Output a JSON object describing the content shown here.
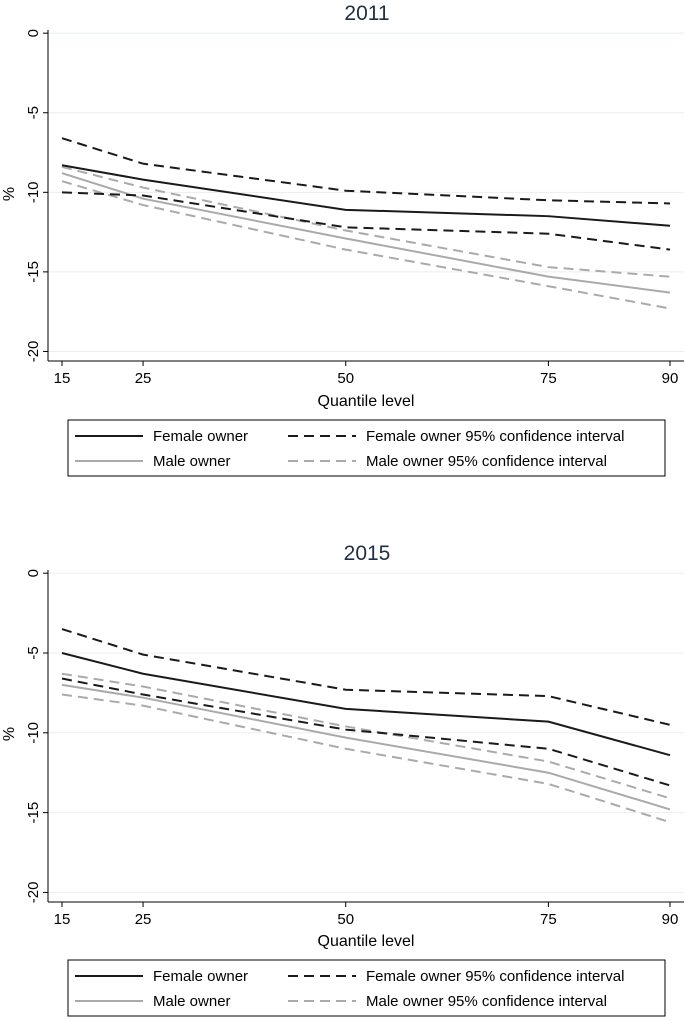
{
  "chart_data": [
    {
      "type": "line",
      "title": "2011",
      "xlabel": "Quantile level",
      "ylabel": "%",
      "x": [
        15,
        25,
        50,
        75,
        90
      ],
      "xlim": [
        14,
        91
      ],
      "ylim": [
        -20.6,
        0.2
      ],
      "yticks": [
        0,
        -5,
        -10,
        -15,
        -20
      ],
      "xticks": [
        15,
        25,
        50,
        75,
        90
      ],
      "series": [
        {
          "name": "Female owner",
          "style": "solid",
          "color": "#1a1a1a",
          "values": [
            -8.3,
            -9.2,
            -11.1,
            -11.5,
            -12.1
          ]
        },
        {
          "name": "Female owner 95% confidence interval upper",
          "style": "dashed",
          "color": "#1a1a1a",
          "values": [
            -6.6,
            -8.2,
            -9.9,
            -10.5,
            -10.7
          ]
        },
        {
          "name": "Female owner 95% confidence interval lower",
          "style": "dashed",
          "color": "#1a1a1a",
          "values": [
            -10.0,
            -10.2,
            -12.2,
            -12.6,
            -13.6
          ]
        },
        {
          "name": "Male owner",
          "style": "solid",
          "color": "#aaaaaa",
          "values": [
            -8.8,
            -10.4,
            -12.9,
            -15.3,
            -16.3
          ]
        },
        {
          "name": "Male owner 95% confidence interval upper",
          "style": "dashed",
          "color": "#aaaaaa",
          "values": [
            -8.4,
            -9.7,
            -12.4,
            -14.7,
            -15.3
          ]
        },
        {
          "name": "Male owner 95% confidence interval lower",
          "style": "dashed",
          "color": "#aaaaaa",
          "values": [
            -9.3,
            -10.8,
            -13.6,
            -15.9,
            -17.3
          ]
        }
      ],
      "legend": [
        {
          "label": "Female owner",
          "style": "solid",
          "color": "#1a1a1a"
        },
        {
          "label": "Female owner 95% confidence interval",
          "style": "dashed",
          "color": "#1a1a1a"
        },
        {
          "label": "Male owner",
          "style": "solid",
          "color": "#aaaaaa"
        },
        {
          "label": "Male owner 95% confidence interval",
          "style": "dashed",
          "color": "#aaaaaa"
        }
      ],
      "legend_position": "bottom"
    },
    {
      "type": "line",
      "title": "2015",
      "xlabel": "Quantile level",
      "ylabel": "%",
      "x": [
        15,
        25,
        50,
        75,
        90
      ],
      "xlim": [
        14,
        91
      ],
      "ylim": [
        -20.6,
        0.2
      ],
      "yticks": [
        0,
        -5,
        -10,
        -15,
        -20
      ],
      "xticks": [
        15,
        25,
        50,
        75,
        90
      ],
      "series": [
        {
          "name": "Female owner",
          "style": "solid",
          "color": "#1a1a1a",
          "values": [
            -5.0,
            -6.3,
            -8.5,
            -9.3,
            -11.4
          ]
        },
        {
          "name": "Female owner 95% confidence interval upper",
          "style": "dashed",
          "color": "#1a1a1a",
          "values": [
            -3.5,
            -5.1,
            -7.3,
            -7.7,
            -9.5
          ]
        },
        {
          "name": "Female owner 95% confidence interval lower",
          "style": "dashed",
          "color": "#1a1a1a",
          "values": [
            -6.6,
            -7.6,
            -9.8,
            -11.0,
            -13.3
          ]
        },
        {
          "name": "Male owner",
          "style": "solid",
          "color": "#aaaaaa",
          "values": [
            -7.0,
            -7.8,
            -10.3,
            -12.5,
            -14.8
          ]
        },
        {
          "name": "Male owner 95% confidence interval upper",
          "style": "dashed",
          "color": "#aaaaaa",
          "values": [
            -6.3,
            -7.1,
            -9.6,
            -11.8,
            -14.1
          ]
        },
        {
          "name": "Male owner 95% confidence interval lower",
          "style": "dashed",
          "color": "#aaaaaa",
          "values": [
            -7.6,
            -8.3,
            -11.0,
            -13.2,
            -15.6
          ]
        }
      ],
      "legend": [
        {
          "label": "Female owner",
          "style": "solid",
          "color": "#1a1a1a"
        },
        {
          "label": "Female owner 95% confidence interval",
          "style": "dashed",
          "color": "#1a1a1a"
        },
        {
          "label": "Male owner",
          "style": "solid",
          "color": "#aaaaaa"
        },
        {
          "label": "Male owner 95% confidence interval",
          "style": "dashed",
          "color": "#aaaaaa"
        }
      ],
      "legend_position": "bottom"
    }
  ]
}
